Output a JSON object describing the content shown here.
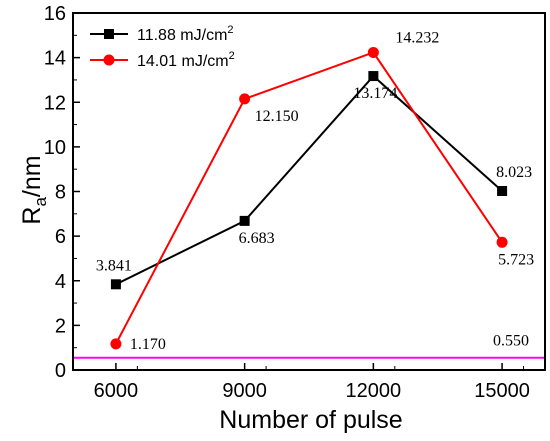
{
  "chart_data": {
    "type": "line",
    "categories": [
      6000,
      9000,
      12000,
      15000
    ],
    "category_labels": [
      "6000",
      "9000",
      "12000",
      "15000"
    ],
    "xlabel": "Number of pulse",
    "ylabel_main": "R",
    "ylabel_sub": "a",
    "ylabel_rest": "/nm",
    "ylim": [
      0,
      16
    ],
    "yticks": [
      "0",
      "2",
      "4",
      "6",
      "8",
      "10",
      "12",
      "14",
      "16"
    ],
    "grid": false,
    "legend_position": "top-left",
    "series": [
      {
        "name_main": "11.88 mJ/cm",
        "name_sup": "2",
        "color": "#000000",
        "marker": "square",
        "values": [
          3.841,
          6.683,
          13.174,
          8.023
        ],
        "labels": [
          "3.841",
          "6.683",
          "13.174",
          "8.023"
        ]
      },
      {
        "name_main": "14.01 mJ/cm",
        "name_sup": "2",
        "color": "#ff0000",
        "marker": "circle",
        "values": [
          1.17,
          12.15,
          14.232,
          5.723
        ],
        "labels": [
          "1.170",
          "12.150",
          "14.232",
          "5.723"
        ]
      }
    ],
    "reference_line": {
      "value": 0.55,
      "label": "0.550",
      "color": "#ff00ff"
    }
  }
}
